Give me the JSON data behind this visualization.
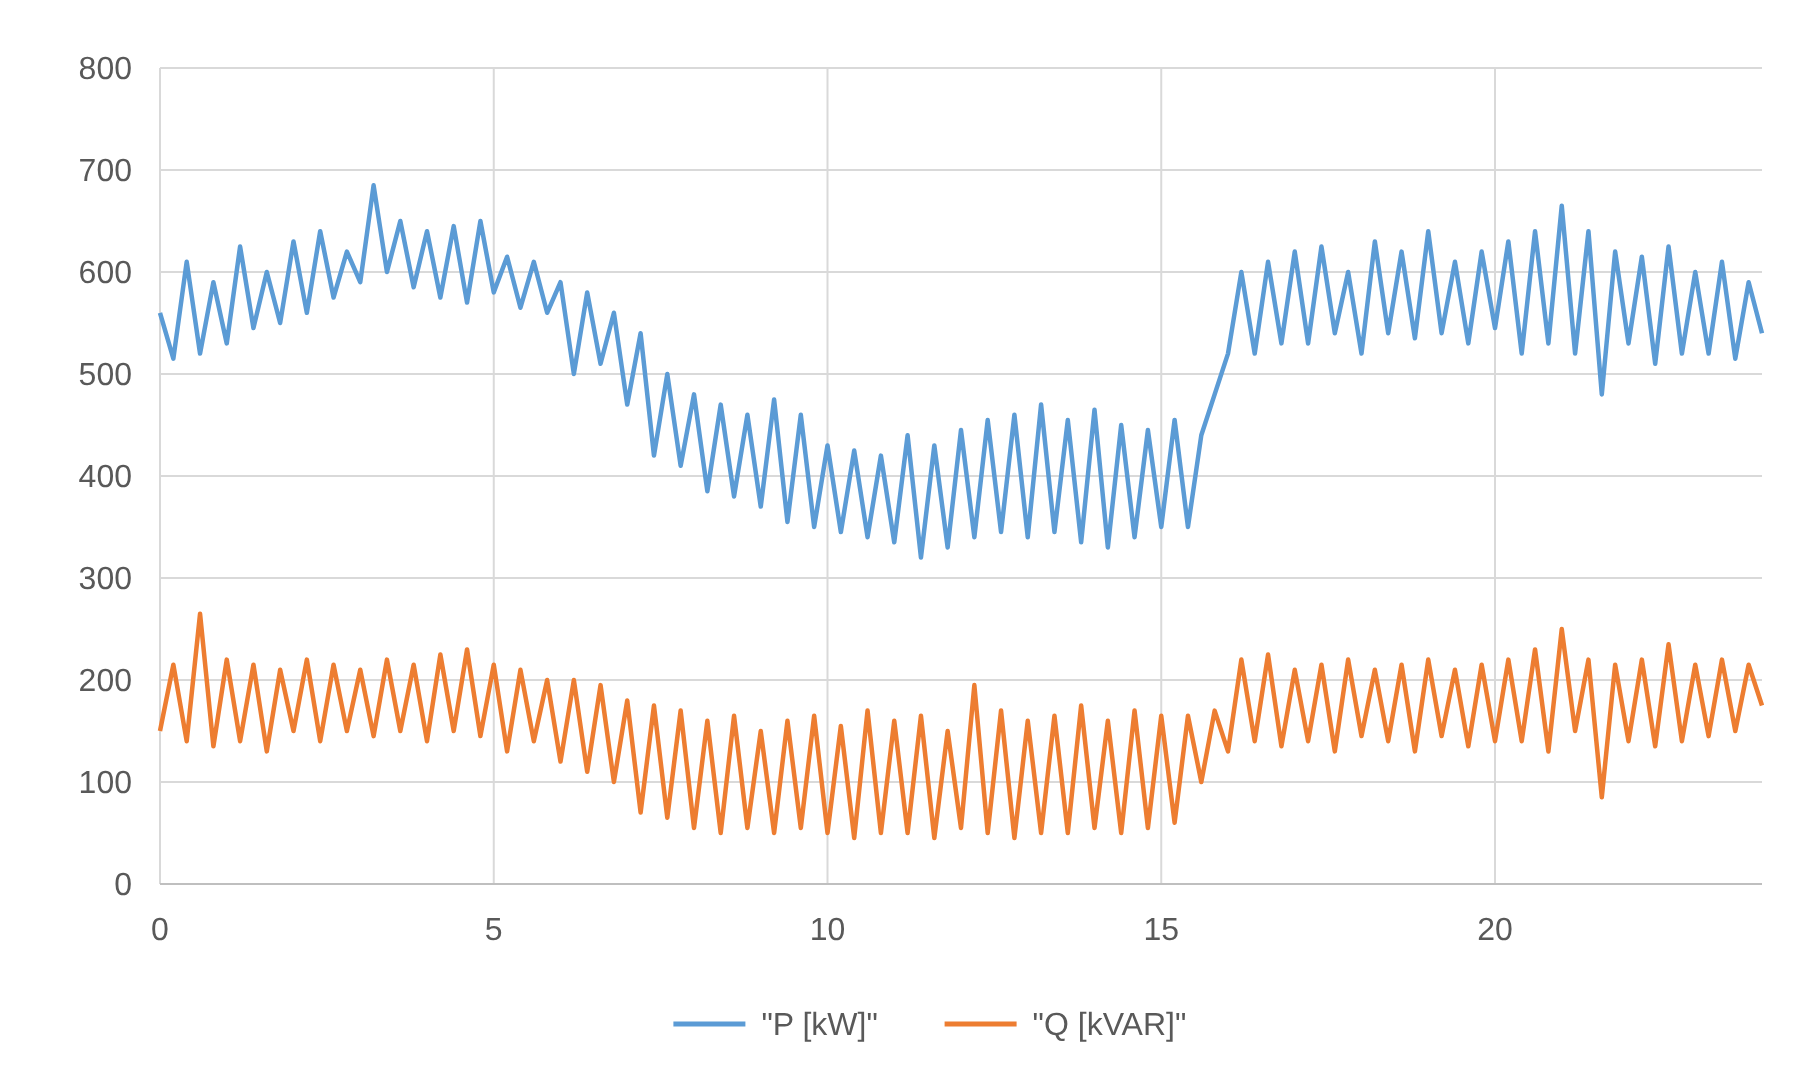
{
  "chart_data": {
    "type": "line",
    "x": [
      0,
      0.2,
      0.4,
      0.6,
      0.8,
      1,
      1.2,
      1.4,
      1.6,
      1.8,
      2,
      2.2,
      2.4,
      2.6,
      2.8,
      3,
      3.2,
      3.4,
      3.6,
      3.8,
      4,
      4.2,
      4.4,
      4.6,
      4.8,
      5,
      5.2,
      5.4,
      5.6,
      5.8,
      6,
      6.2,
      6.4,
      6.6,
      6.8,
      7,
      7.2,
      7.4,
      7.6,
      7.8,
      8,
      8.2,
      8.4,
      8.6,
      8.8,
      9,
      9.2,
      9.4,
      9.6,
      9.8,
      10,
      10.2,
      10.4,
      10.6,
      10.8,
      11,
      11.2,
      11.4,
      11.6,
      11.8,
      12,
      12.2,
      12.4,
      12.6,
      12.8,
      13,
      13.2,
      13.4,
      13.6,
      13.8,
      14,
      14.2,
      14.4,
      14.6,
      14.8,
      15,
      15.2,
      15.4,
      15.6,
      15.8,
      16,
      16.2,
      16.4,
      16.6,
      16.8,
      17,
      17.2,
      17.4,
      17.6,
      17.8,
      18,
      18.2,
      18.4,
      18.6,
      18.8,
      19,
      19.2,
      19.4,
      19.6,
      19.8,
      20,
      20.2,
      20.4,
      20.6,
      20.8,
      21,
      21.2,
      21.4,
      21.6,
      21.8,
      22,
      22.2,
      22.4,
      22.6,
      22.8,
      23,
      23.2,
      23.4,
      23.6,
      23.8,
      24
    ],
    "series": [
      {
        "name": "\"P [kW]\"",
        "color": "#5b9bd5",
        "values": [
          560,
          515,
          610,
          520,
          590,
          530,
          625,
          545,
          600,
          550,
          630,
          560,
          640,
          575,
          620,
          590,
          685,
          600,
          650,
          585,
          640,
          575,
          645,
          570,
          650,
          580,
          615,
          565,
          610,
          560,
          590,
          500,
          580,
          510,
          560,
          470,
          540,
          420,
          500,
          410,
          480,
          385,
          470,
          380,
          460,
          370,
          475,
          355,
          460,
          350,
          430,
          345,
          425,
          340,
          420,
          335,
          440,
          320,
          430,
          330,
          445,
          340,
          455,
          345,
          460,
          340,
          470,
          345,
          455,
          335,
          465,
          330,
          450,
          340,
          445,
          350,
          455,
          350,
          440,
          480,
          520,
          600,
          520,
          610,
          530,
          620,
          530,
          625,
          540,
          600,
          520,
          630,
          540,
          620,
          535,
          640,
          540,
          610,
          530,
          620,
          545,
          630,
          520,
          640,
          530,
          665,
          520,
          640,
          480,
          620,
          530,
          615,
          510,
          625,
          520,
          600,
          520,
          610,
          515,
          590,
          540
        ]
      },
      {
        "name": "\"Q [kVAR]\"",
        "color": "#ed7d31",
        "values": [
          150,
          215,
          140,
          265,
          135,
          220,
          140,
          215,
          130,
          210,
          150,
          220,
          140,
          215,
          150,
          210,
          145,
          220,
          150,
          215,
          140,
          225,
          150,
          230,
          145,
          215,
          130,
          210,
          140,
          200,
          120,
          200,
          110,
          195,
          100,
          180,
          70,
          175,
          65,
          170,
          55,
          160,
          50,
          165,
          55,
          150,
          50,
          160,
          55,
          165,
          50,
          155,
          45,
          170,
          50,
          160,
          50,
          165,
          45,
          150,
          55,
          195,
          50,
          170,
          45,
          160,
          50,
          165,
          50,
          175,
          55,
          160,
          50,
          170,
          55,
          165,
          60,
          165,
          100,
          170,
          130,
          220,
          140,
          225,
          135,
          210,
          140,
          215,
          130,
          220,
          145,
          210,
          140,
          215,
          130,
          220,
          145,
          210,
          135,
          215,
          140,
          220,
          140,
          230,
          130,
          250,
          150,
          220,
          85,
          215,
          140,
          220,
          135,
          235,
          140,
          215,
          145,
          220,
          150,
          215,
          175
        ]
      }
    ],
    "xlim": [
      0,
      24
    ],
    "xticks": [
      0,
      5,
      10,
      15,
      20
    ],
    "ylim": [
      0,
      800
    ],
    "yticks": [
      0,
      100,
      200,
      300,
      400,
      500,
      600,
      700,
      800
    ],
    "grid": true,
    "legend": "bottom"
  }
}
